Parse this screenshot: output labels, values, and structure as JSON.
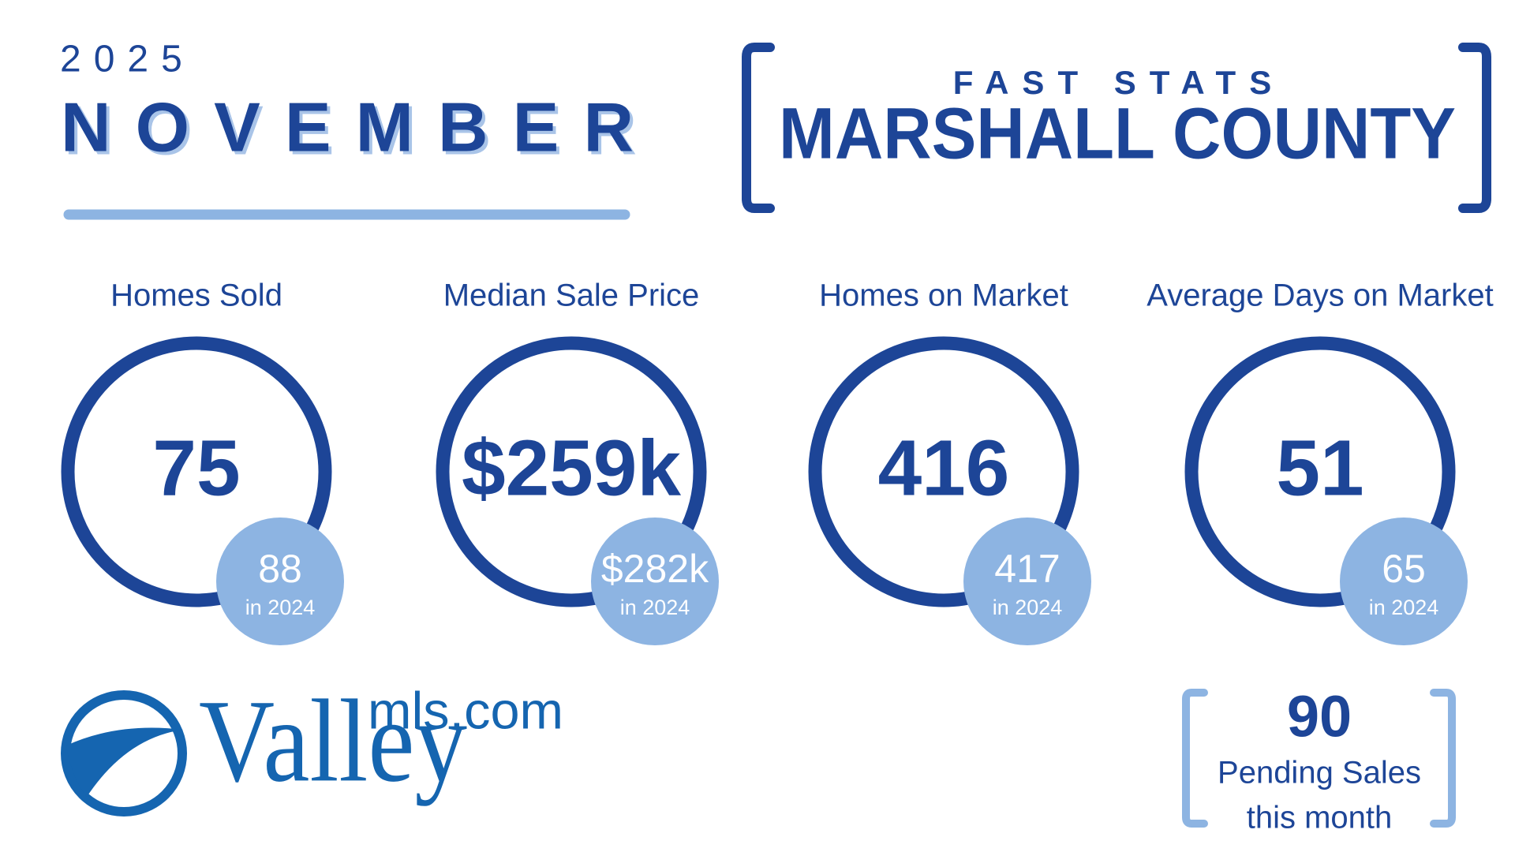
{
  "header": {
    "year": "2025",
    "month": "NOVEMBER"
  },
  "title": {
    "kicker": "FAST STATS",
    "county": "MARSHALL COUNTY"
  },
  "stats": [
    {
      "label": "Homes Sold",
      "value": "75",
      "prior": "88",
      "prior_label": "in 2024"
    },
    {
      "label": "Median Sale Price",
      "value": "$259k",
      "prior": "$282k",
      "prior_label": "in 2024"
    },
    {
      "label": "Homes on Market",
      "value": "416",
      "prior": "417",
      "prior_label": "in 2024"
    },
    {
      "label": "Average Days on Market",
      "value": "51",
      "prior": "65",
      "prior_label": "in 2024"
    }
  ],
  "logo": {
    "brand": "Valley",
    "suffix": "mls.com"
  },
  "pending": {
    "value": "90",
    "line1": "Pending Sales",
    "line2": "this month"
  }
}
